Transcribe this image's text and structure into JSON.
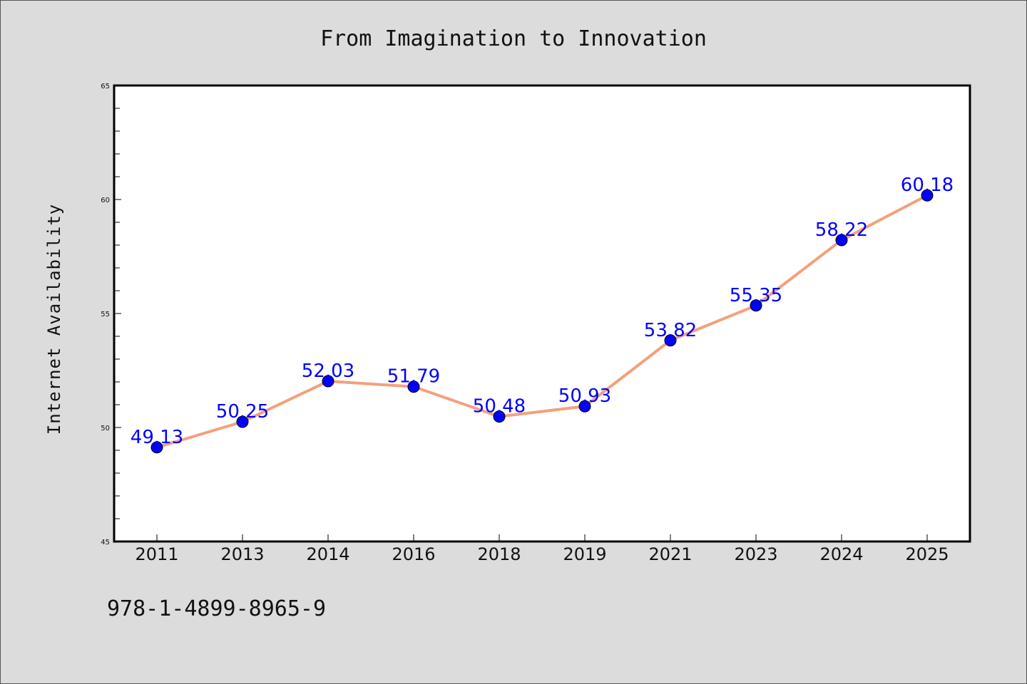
{
  "chart_data": {
    "type": "line",
    "title": "From Imagination to Innovation",
    "xlabel": "",
    "ylabel": "Internet Availability",
    "categories": [
      "2011",
      "2013",
      "2014",
      "2016",
      "2018",
      "2019",
      "2021",
      "2023",
      "2024",
      "2025"
    ],
    "series": [
      {
        "values": [
          49.13,
          50.25,
          52.03,
          51.79,
          50.48,
          50.93,
          53.82,
          55.35,
          58.22,
          60.18
        ],
        "labels": [
          "49.13",
          "50.25",
          "52.03",
          "51.79",
          "50.48",
          "50.93",
          "53.82",
          "55.35",
          "58.22",
          "60.18"
        ],
        "line_color": "#f4a07c",
        "marker_color": "#0000ff"
      }
    ],
    "ylim": [
      45,
      65
    ],
    "yticks": [
      "45",
      "50",
      "55",
      "60",
      "65"
    ],
    "grid": false,
    "legend": "none",
    "label_color": "#0000ff"
  },
  "footer_text": "978-1-4899-8965-9"
}
